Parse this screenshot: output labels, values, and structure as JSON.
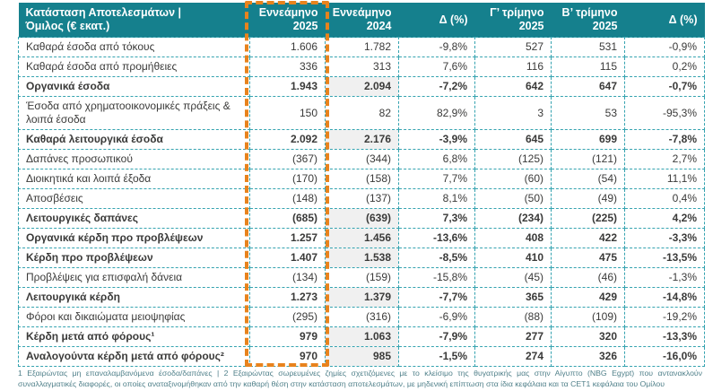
{
  "table": {
    "columns": [
      "Κατάσταση Αποτελεσμάτων |\nΌμιλος (€ εκατ.)",
      "Εννεάμηνο\n2025",
      "Εννεάμηνο\n2024",
      "Δ (%)",
      "Γ’ τρίμηνο\n2025",
      "Β’ τρίμηνο\n2025",
      "Δ (%)"
    ],
    "highlighted_column": "Εννεάμηνο 2025",
    "rows": [
      {
        "label": "Καθαρά έσοδα από τόκους",
        "bold": false,
        "values": [
          "1.606",
          "1.782",
          "-9,8%",
          "527",
          "531",
          "-0,9%"
        ]
      },
      {
        "label": "Καθαρά έσοδα από προμήθειες",
        "bold": false,
        "values": [
          "336",
          "313",
          "7,6%",
          "116",
          "115",
          "0,2%"
        ]
      },
      {
        "label": "Οργανικά έσοδα",
        "bold": true,
        "values": [
          "1.943",
          "2.094",
          "-7,2%",
          "642",
          "647",
          "-0,7%"
        ]
      },
      {
        "label": "Έσοδα από χρηματοοικονομικές πράξεις & λοιπά έσοδα",
        "bold": false,
        "values": [
          "150",
          "82",
          "82,9%",
          "3",
          "53",
          "-95,3%"
        ]
      },
      {
        "label": "Καθαρά λειτουργικά έσοδα",
        "bold": true,
        "values": [
          "2.092",
          "2.176",
          "-3,9%",
          "645",
          "699",
          "-7,8%"
        ]
      },
      {
        "label": "Δαπάνες προσωπικού",
        "bold": false,
        "values": [
          "(367)",
          "(344)",
          "6,8%",
          "(125)",
          "(121)",
          "2,7%"
        ]
      },
      {
        "label": "Διοικητικά και λοιπά έξοδα",
        "bold": false,
        "values": [
          "(170)",
          "(158)",
          "7,7%",
          "(60)",
          "(54)",
          "11,1%"
        ]
      },
      {
        "label": "Αποσβέσεις",
        "bold": false,
        "values": [
          "(148)",
          "(137)",
          "8,1%",
          "(50)",
          "(49)",
          "0,4%"
        ]
      },
      {
        "label": "Λειτουργικές δαπάνες",
        "bold": true,
        "values": [
          "(685)",
          "(639)",
          "7,3%",
          "(234)",
          "(225)",
          "4,2%"
        ]
      },
      {
        "label": "Οργανικά κέρδη προ προβλέψεων",
        "bold": true,
        "values": [
          "1.257",
          "1.456",
          "-13,6%",
          "408",
          "422",
          "-3,3%"
        ]
      },
      {
        "label": "Κέρδη προ προβλέψεων",
        "bold": true,
        "values": [
          "1.407",
          "1.538",
          "-8,5%",
          "410",
          "475",
          "-13,5%"
        ]
      },
      {
        "label": "Προβλέψεις για επισφαλή δάνεια",
        "bold": false,
        "values": [
          "(134)",
          "(159)",
          "-15,8%",
          "(45)",
          "(46)",
          "-1,3%"
        ]
      },
      {
        "label": "Λειτουργικά κέρδη",
        "bold": true,
        "values": [
          "1.273",
          "1.379",
          "-7,7%",
          "365",
          "429",
          "-14,8%"
        ]
      },
      {
        "label": "Φόροι και δικαιώματα μειοψηφίας",
        "bold": false,
        "values": [
          "(295)",
          "(316)",
          "-6,9%",
          "(88)",
          "(109)",
          "-19,2%"
        ]
      },
      {
        "label": "Κέρδη μετά από φόρους¹",
        "bold": true,
        "values": [
          "979",
          "1.063",
          "-7,9%",
          "277",
          "320",
          "-13,3%"
        ]
      },
      {
        "label": "Αναλογούντα κέρδη μετά από φόρους²",
        "bold": true,
        "values": [
          "970",
          "985",
          "-1,5%",
          "274",
          "326",
          "-16,0%"
        ]
      }
    ]
  },
  "footnote": "1 Εξαιρώντας μη επαναλαμβανόμενα έσοδα/δαπάνες | 2 Εξαιρώντας σωρευμένες ζημίες σχετιζόμενες με το κλείσιμο της θυγατρικής μας στην Αίγυπτο (NBG Egypt) που αντανακλούν συναλλαγματικές διαφορές, οι οποίες αναταξινομήθηκαν από την καθαρή θέση στην κατάσταση αποτελεσμάτων, με μηδενική επίπτωση στα ίδια κεφάλαια και τα CET1 κεφάλαια του Ομίλου",
  "colors": {
    "header_teal": "#15808d",
    "cell_border_teal": "#35a3b0",
    "highlight_orange": "#e8831d",
    "bold_row_shade": "#f0f0f0",
    "body_text": "#3a3a39",
    "footnote_text": "#50808a"
  }
}
